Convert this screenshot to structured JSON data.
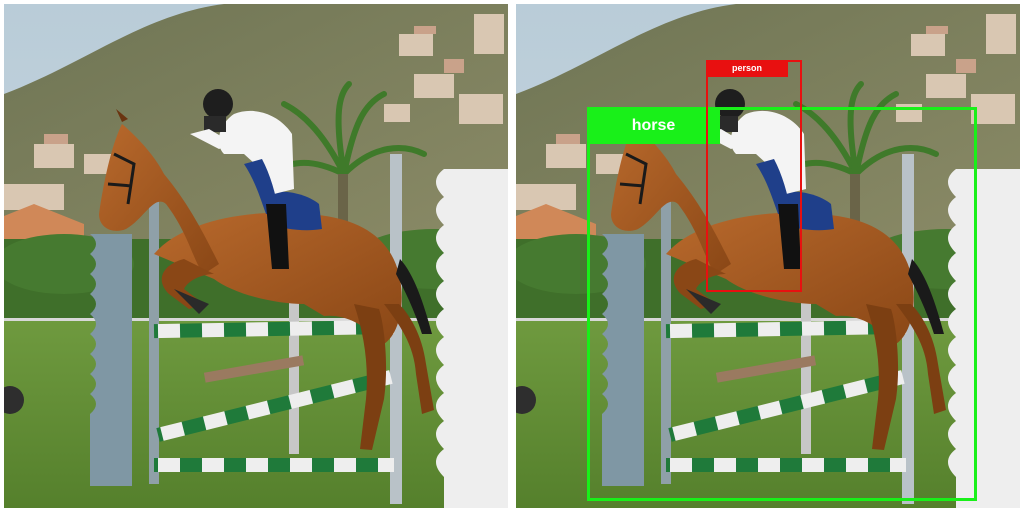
{
  "panels": [
    {
      "name": "original-photo"
    },
    {
      "name": "annotated-photo"
    }
  ],
  "detections": [
    {
      "label": "horse",
      "color": "#19f019"
    },
    {
      "label": "person",
      "color": "#e81010"
    }
  ]
}
